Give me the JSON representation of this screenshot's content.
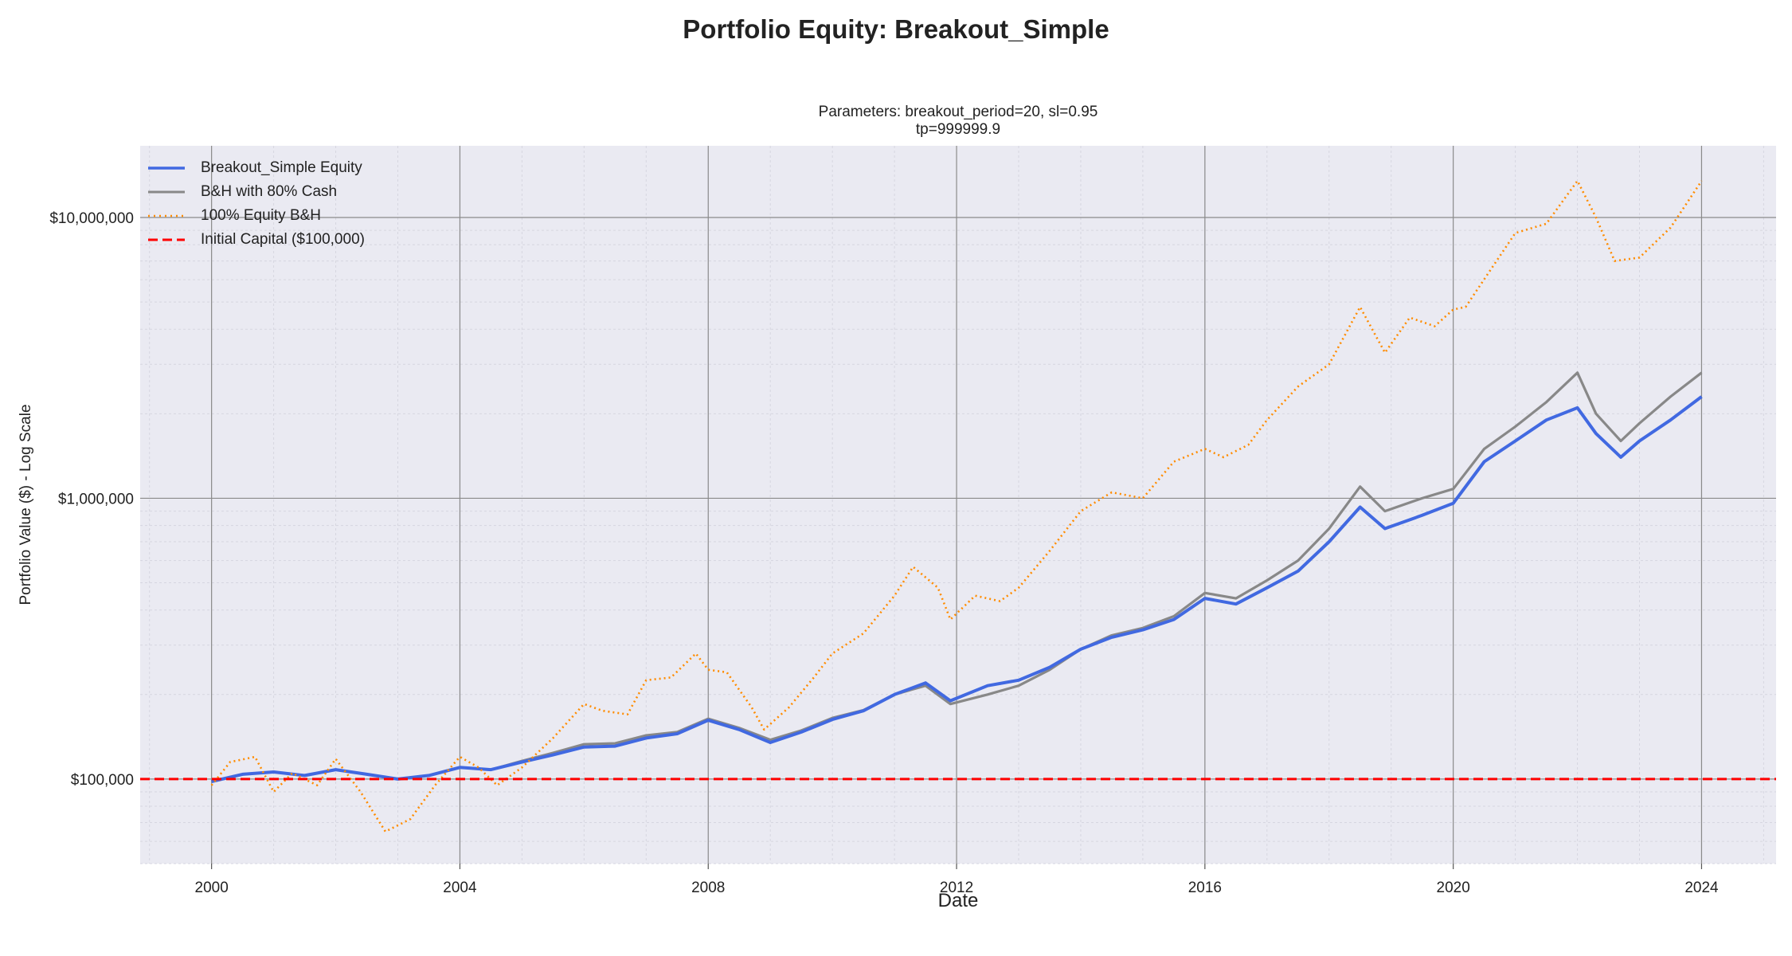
{
  "figure": {
    "suptitle": "Portfolio Equity: Breakout_Simple",
    "subtitle_line1": "Parameters: breakout_period=20, sl=0.95",
    "subtitle_line2": "tp=999999.9"
  },
  "colors": {
    "strategy": "#4169e1",
    "bh80": "#888888",
    "equity100": "#ff8c00",
    "initial": "#ff0000",
    "plot_bg": "#eaeaf2"
  },
  "chart_data": {
    "type": "line",
    "xlabel": "Date",
    "ylabel": "Portfolio Value ($) - Log Scale",
    "yscale": "log",
    "xlim": [
      1998.85,
      2025.2
    ],
    "ylim": [
      50000,
      18000000
    ],
    "x_ticks": [
      "2000",
      "2004",
      "2008",
      "2012",
      "2016",
      "2020",
      "2024"
    ],
    "y_ticks": [
      {
        "value": 100000,
        "label": "$100,000"
      },
      {
        "value": 1000000,
        "label": "$1,000,000"
      },
      {
        "value": 10000000,
        "label": "$10,000,000"
      }
    ],
    "grid": true,
    "legend_position": "top-left",
    "hline": {
      "name": "Initial Capital ($100,000)",
      "value": 100000
    },
    "series": [
      {
        "name": "Breakout_Simple Equity",
        "style": "solid",
        "x": [
          2000.0,
          2000.5,
          2001.0,
          2001.5,
          2002.0,
          2002.5,
          2003.0,
          2003.5,
          2004.0,
          2004.5,
          2005.0,
          2005.5,
          2006.0,
          2006.5,
          2007.0,
          2007.5,
          2008.0,
          2008.5,
          2009.0,
          2009.5,
          2010.0,
          2010.5,
          2011.0,
          2011.5,
          2011.9,
          2012.5,
          2013.0,
          2013.5,
          2014.0,
          2014.5,
          2015.0,
          2015.5,
          2016.0,
          2016.5,
          2017.0,
          2017.5,
          2018.0,
          2018.5,
          2018.9,
          2019.5,
          2020.0,
          2020.5,
          2021.0,
          2021.5,
          2022.0,
          2022.3,
          2022.7,
          2023.0,
          2023.5,
          2024.0
        ],
        "y": [
          98000,
          104000,
          106000,
          103000,
          108000,
          104000,
          100000,
          103000,
          110000,
          108000,
          115000,
          122000,
          130000,
          131000,
          140000,
          145000,
          162000,
          150000,
          135000,
          147000,
          163000,
          175000,
          200000,
          220000,
          190000,
          215000,
          225000,
          250000,
          290000,
          320000,
          340000,
          370000,
          440000,
          420000,
          480000,
          550000,
          700000,
          930000,
          780000,
          870000,
          960000,
          1350000,
          1600000,
          1900000,
          2100000,
          1700000,
          1400000,
          1600000,
          1900000,
          2300000
        ]
      },
      {
        "name": "B&H with 80% Cash",
        "style": "solid",
        "x": [
          2000.0,
          2000.5,
          2001.0,
          2001.5,
          2002.0,
          2002.5,
          2003.0,
          2003.5,
          2004.0,
          2004.5,
          2005.0,
          2005.5,
          2006.0,
          2006.5,
          2007.0,
          2007.5,
          2008.0,
          2008.5,
          2009.0,
          2009.5,
          2010.0,
          2010.5,
          2011.0,
          2011.5,
          2011.9,
          2012.5,
          2013.0,
          2013.5,
          2014.0,
          2014.5,
          2015.0,
          2015.5,
          2016.0,
          2016.5,
          2017.0,
          2017.5,
          2018.0,
          2018.5,
          2018.9,
          2019.5,
          2020.0,
          2020.5,
          2021.0,
          2021.5,
          2022.0,
          2022.3,
          2022.7,
          2023.0,
          2023.5,
          2024.0
        ],
        "y": [
          98000,
          104000,
          106000,
          103000,
          108000,
          104000,
          100000,
          103000,
          110000,
          108000,
          116000,
          124000,
          133000,
          134000,
          143000,
          147000,
          164000,
          152000,
          138000,
          149000,
          165000,
          176000,
          200000,
          215000,
          185000,
          200000,
          215000,
          245000,
          290000,
          325000,
          345000,
          380000,
          460000,
          440000,
          510000,
          600000,
          780000,
          1100000,
          900000,
          1000000,
          1080000,
          1500000,
          1800000,
          2200000,
          2800000,
          2000000,
          1600000,
          1850000,
          2300000,
          2800000
        ]
      },
      {
        "name": "100% Equity B&H",
        "style": "dotted",
        "x": [
          2000.0,
          2000.3,
          2000.7,
          2001.0,
          2001.3,
          2001.7,
          2002.0,
          2002.4,
          2002.8,
          2003.2,
          2003.6,
          2004.0,
          2004.3,
          2004.6,
          2005.0,
          2005.5,
          2006.0,
          2006.3,
          2006.7,
          2007.0,
          2007.4,
          2007.8,
          2008.0,
          2008.3,
          2008.7,
          2008.9,
          2009.3,
          2009.7,
          2010.0,
          2010.5,
          2011.0,
          2011.3,
          2011.7,
          2011.9,
          2012.3,
          2012.7,
          2013.0,
          2013.5,
          2014.0,
          2014.5,
          2015.0,
          2015.5,
          2016.0,
          2016.3,
          2016.7,
          2017.0,
          2017.5,
          2018.0,
          2018.5,
          2018.9,
          2019.3,
          2019.7,
          2020.0,
          2020.2,
          2020.6,
          2021.0,
          2021.5,
          2022.0,
          2022.3,
          2022.6,
          2023.0,
          2023.5,
          2024.0
        ],
        "y": [
          95000,
          115000,
          120000,
          90000,
          105000,
          95000,
          118000,
          90000,
          65000,
          72000,
          95000,
          120000,
          110000,
          95000,
          110000,
          140000,
          185000,
          175000,
          170000,
          225000,
          230000,
          280000,
          245000,
          240000,
          180000,
          150000,
          180000,
          230000,
          280000,
          330000,
          450000,
          570000,
          480000,
          370000,
          450000,
          430000,
          480000,
          650000,
          900000,
          1050000,
          1000000,
          1350000,
          1500000,
          1400000,
          1550000,
          1900000,
          2500000,
          3000000,
          4800000,
          3300000,
          4400000,
          4100000,
          4700000,
          4800000,
          6500000,
          8800000,
          9500000,
          13500000,
          10000000,
          7000000,
          7200000,
          9200000,
          13500000
        ]
      }
    ]
  }
}
